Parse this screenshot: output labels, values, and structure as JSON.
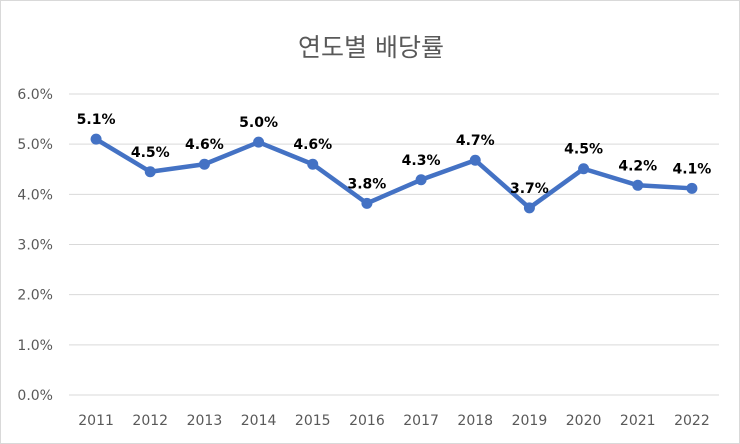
{
  "chart_data": {
    "type": "line",
    "title": "연도별 배당률",
    "categories": [
      "2011",
      "2012",
      "2013",
      "2014",
      "2015",
      "2016",
      "2017",
      "2018",
      "2019",
      "2020",
      "2021",
      "2022"
    ],
    "series": [
      {
        "values": [
          5.1,
          4.45,
          4.6,
          5.04,
          4.6,
          3.82,
          4.29,
          4.68,
          3.73,
          4.51,
          4.18,
          4.12
        ]
      }
    ],
    "data_labels": [
      "5.1%",
      "4.5%",
      "4.6%",
      "5.0%",
      "4.6%",
      "3.8%",
      "4.3%",
      "4.7%",
      "3.7%",
      "4.5%",
      "4.2%",
      "4.1%"
    ],
    "y_ticks": [
      "0.0%",
      "1.0%",
      "2.0%",
      "3.0%",
      "4.0%",
      "5.0%",
      "6.0%"
    ],
    "ylim": [
      0,
      6
    ],
    "grid": true,
    "line_color": "#4472c4",
    "gridline_color": "#d9d9d9"
  }
}
